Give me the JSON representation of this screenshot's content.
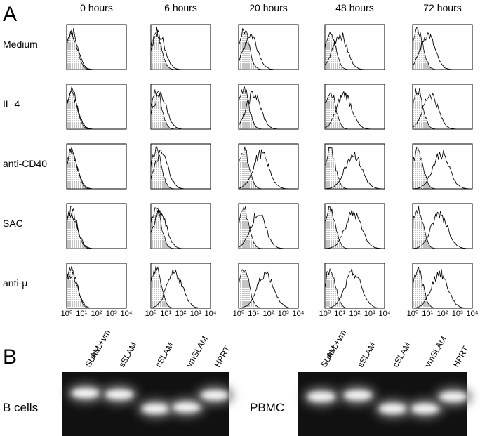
{
  "panel_a": {
    "label": "A",
    "columns": [
      "0 hours",
      "6 hours",
      "20 hours",
      "48 hours",
      "72 hours"
    ],
    "rows": [
      "Medium",
      "IL-4",
      "anti-CD40",
      "SAC",
      "anti-μ"
    ],
    "axis_ticks": [
      "10⁰",
      "10¹",
      "10²",
      "10³",
      "10⁴"
    ]
  },
  "panel_b": {
    "label": "B",
    "lanes": [
      [
        "m+c+vm",
        "SLAM"
      ],
      [
        "sSLAM"
      ],
      [
        "cSLAM"
      ],
      [
        "vmSLAM"
      ],
      [
        "HPRT"
      ]
    ],
    "gels": [
      {
        "label": "B cells"
      },
      {
        "label": "PBMC"
      }
    ]
  }
}
